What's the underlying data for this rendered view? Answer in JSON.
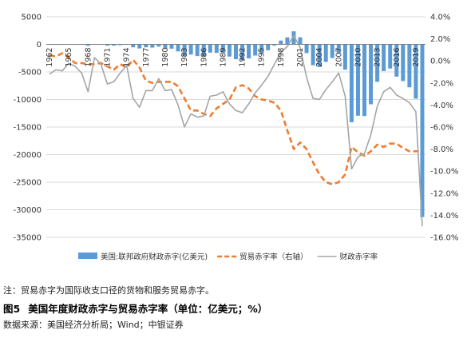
{
  "chart_data": {
    "type": "bar+line",
    "categories": [
      1962,
      1963,
      1964,
      1965,
      1966,
      1967,
      1968,
      1969,
      1970,
      1971,
      1972,
      1973,
      1974,
      1975,
      1976,
      1977,
      1978,
      1979,
      1980,
      1981,
      1982,
      1983,
      1984,
      1985,
      1986,
      1987,
      1988,
      1989,
      1990,
      1991,
      1992,
      1993,
      1994,
      1995,
      1996,
      1997,
      1998,
      1999,
      2000,
      2001,
      2002,
      2003,
      2004,
      2005,
      2006,
      2007,
      2008,
      2009,
      2010,
      2011,
      2012,
      2013,
      2014,
      2015,
      2016,
      2017,
      2018,
      2019,
      2020
    ],
    "x_tick_labels": [
      "1962",
      "1965",
      "1968",
      "1971",
      "1974",
      "1977",
      "1980",
      "1983",
      "1986",
      "1989",
      "1992",
      "1995",
      "1998",
      "2001",
      "2004",
      "2007",
      "2010",
      "2013",
      "2016",
      "2019"
    ],
    "left_axis": {
      "min": -35000,
      "max": 5000,
      "step": 5000
    },
    "right_axis": {
      "min": -16,
      "max": 4,
      "step": 2,
      "format": "percent"
    },
    "series": [
      {
        "name": "美国:联邦政府财政赤字(亿美元)",
        "kind": "bar",
        "axis": "left",
        "color": "#5b9bd5",
        "values": [
          -71,
          -48,
          -59,
          -14,
          -37,
          -86,
          -252,
          32,
          -28,
          -230,
          -234,
          -149,
          -61,
          -532,
          -737,
          -537,
          -590,
          -407,
          -739,
          -790,
          -1280,
          -2078,
          -1854,
          -2123,
          -2212,
          -1497,
          -1552,
          -1528,
          -2212,
          -2694,
          -2904,
          -2552,
          -2031,
          -1640,
          -1073,
          -219,
          690,
          1256,
          2362,
          1282,
          -1578,
          -3778,
          -4127,
          -3183,
          -2482,
          -1607,
          -4586,
          -14127,
          -12940,
          -13003,
          -10870,
          -6798,
          -4847,
          -4384,
          -5849,
          -6652,
          -7790,
          -9844,
          -31320
        ]
      },
      {
        "name": "贸易赤字率（右轴）",
        "kind": "line",
        "axis": "right",
        "color": "#ed7d31",
        "dash": true,
        "values": [
          0.5,
          0.4,
          0.7,
          0.3,
          -0.2,
          -0.2,
          -0.3,
          -0.3,
          -0.2,
          -0.5,
          -0.8,
          -0.3,
          -0.6,
          0.1,
          -0.6,
          -1.8,
          -2.0,
          -1.9,
          -1.9,
          -1.9,
          -2.3,
          -3.4,
          -4.5,
          -4.5,
          -4.8,
          -5.0,
          -4.3,
          -3.9,
          -3.5,
          -2.4,
          -2.2,
          -2.5,
          -3.2,
          -3.5,
          -3.6,
          -3.8,
          -4.5,
          -6.3,
          -8.0,
          -7.4,
          -8.0,
          -9.2,
          -10.3,
          -11.0,
          -11.2,
          -11.0,
          -10.3,
          -7.8,
          -8.3,
          -8.6,
          -8.2,
          -7.6,
          -7.8,
          -7.5,
          -7.5,
          -7.9,
          -8.2,
          -8.2,
          -8.2
        ]
      },
      {
        "name": "财政赤字率",
        "kind": "line",
        "axis": "right",
        "color": "#a5a5a5",
        "dash": false,
        "values": [
          -1.2,
          -0.8,
          -0.9,
          -0.2,
          -0.5,
          -1.1,
          -2.8,
          0.3,
          -0.3,
          -2.1,
          -1.9,
          -1.1,
          -0.4,
          -3.4,
          -4.2,
          -2.7,
          -2.7,
          -1.6,
          -2.7,
          -2.6,
          -4.0,
          -6.0,
          -4.8,
          -5.1,
          -5.0,
          -3.2,
          -3.1,
          -2.8,
          -3.9,
          -4.5,
          -4.7,
          -3.9,
          -2.9,
          -2.2,
          -1.4,
          -0.3,
          0.8,
          1.3,
          2.3,
          1.2,
          -1.5,
          -3.4,
          -3.5,
          -2.6,
          -1.9,
          -1.1,
          -3.2,
          -9.8,
          -8.7,
          -8.4,
          -6.7,
          -4.1,
          -2.8,
          -2.4,
          -3.1,
          -3.4,
          -3.8,
          -4.6,
          -15.0
        ]
      }
    ]
  },
  "note": "注：贸易赤字为国际收支口径的货物和服务贸易赤字。",
  "figure": {
    "number": "图5",
    "title": "美国年度财政赤字与贸易赤字率（单位：亿美元；%）"
  },
  "source": "数据来源：美国经济分析局；Wind；中银证券"
}
